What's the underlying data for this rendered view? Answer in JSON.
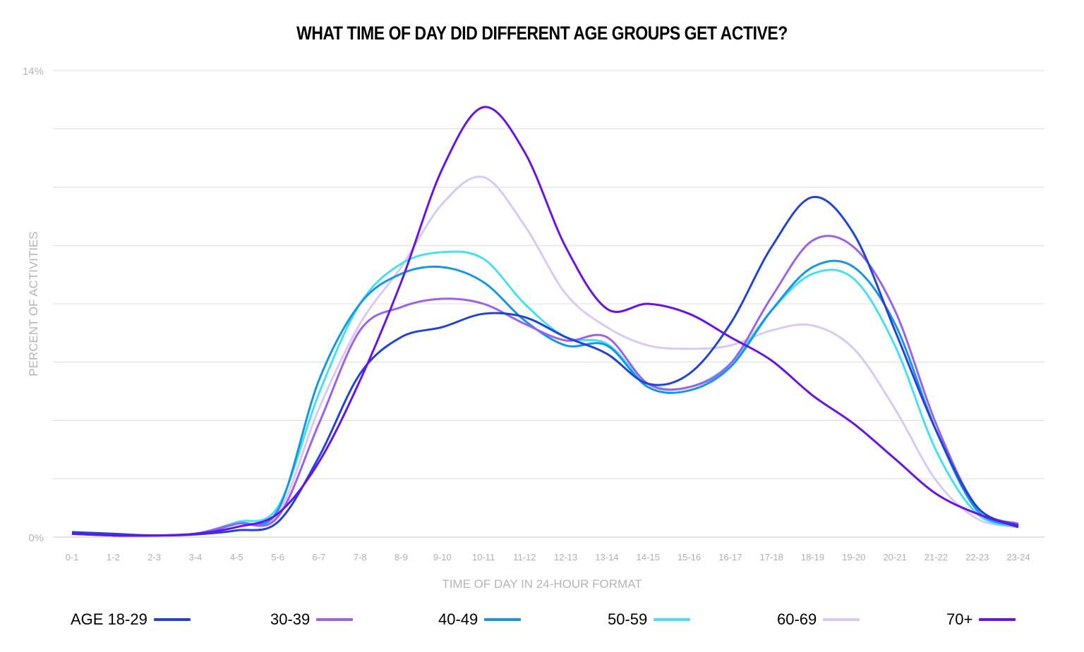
{
  "chart_data": {
    "type": "line",
    "title": "WHAT TIME OF DAY DID DIFFERENT AGE GROUPS GET ACTIVE?",
    "xlabel": "TIME OF DAY IN 24-HOUR FORMAT",
    "ylabel": "PERCENT OF ACTIVITIES",
    "ylim": [
      0,
      14
    ],
    "ytick_labels": [
      "0%",
      "14%"
    ],
    "grid": true,
    "legend_placement": "bottom",
    "categories": [
      "0-1",
      "1-2",
      "2-3",
      "3-4",
      "4-5",
      "5-6",
      "6-7",
      "7-8",
      "8-9",
      "9-10",
      "10-11",
      "11-12",
      "12-13",
      "13-14",
      "14-15",
      "15-16",
      "16-17",
      "17-18",
      "18-19",
      "19-20",
      "20-21",
      "21-22",
      "22-23",
      "23-24"
    ],
    "series": [
      {
        "name": "AGE 18-29",
        "color": "#1f44d6",
        "values": [
          0.15,
          0.1,
          0.05,
          0.08,
          0.2,
          0.45,
          2.4,
          4.9,
          6.0,
          6.3,
          6.7,
          6.6,
          6.0,
          5.5,
          4.6,
          4.9,
          6.4,
          8.7,
          10.2,
          9.1,
          6.2,
          3.2,
          0.9,
          0.35
        ]
      },
      {
        "name": "30-39",
        "color": "#9b62ee",
        "values": [
          0.1,
          0.05,
          0.05,
          0.1,
          0.4,
          0.6,
          3.4,
          6.2,
          6.9,
          7.15,
          7.0,
          6.4,
          5.9,
          6.0,
          4.6,
          4.5,
          5.2,
          7.2,
          8.9,
          8.7,
          6.8,
          3.4,
          0.9,
          0.4
        ]
      },
      {
        "name": "40-49",
        "color": "#1496ea",
        "values": [
          0.1,
          0.05,
          0.05,
          0.1,
          0.4,
          0.8,
          4.7,
          7.0,
          7.9,
          8.1,
          7.65,
          6.5,
          5.75,
          5.75,
          4.5,
          4.4,
          5.1,
          6.8,
          8.1,
          8.1,
          6.4,
          3.2,
          0.8,
          0.35
        ]
      },
      {
        "name": "50-59",
        "color": "#45e1f2",
        "values": [
          0.1,
          0.05,
          0.05,
          0.1,
          0.45,
          0.9,
          4.3,
          7.0,
          8.2,
          8.55,
          8.35,
          7.0,
          6.0,
          5.8,
          4.6,
          4.5,
          5.2,
          6.8,
          7.9,
          7.75,
          5.75,
          2.6,
          0.7,
          0.3
        ]
      },
      {
        "name": "60-69",
        "color": "#dac8f6",
        "values": [
          0.1,
          0.05,
          0.05,
          0.1,
          0.4,
          0.7,
          3.85,
          6.4,
          8.1,
          10.0,
          10.8,
          9.35,
          7.3,
          6.3,
          5.75,
          5.65,
          5.75,
          6.2,
          6.35,
          5.65,
          3.85,
          1.7,
          0.55,
          0.3
        ]
      },
      {
        "name": "70+",
        "color": "#6a12ea",
        "values": [
          0.1,
          0.05,
          0.05,
          0.1,
          0.3,
          0.7,
          2.25,
          4.7,
          7.65,
          11.05,
          12.9,
          11.55,
          8.7,
          6.85,
          7.0,
          6.7,
          6.0,
          5.3,
          4.25,
          3.4,
          2.35,
          1.3,
          0.7,
          0.3
        ]
      }
    ]
  }
}
